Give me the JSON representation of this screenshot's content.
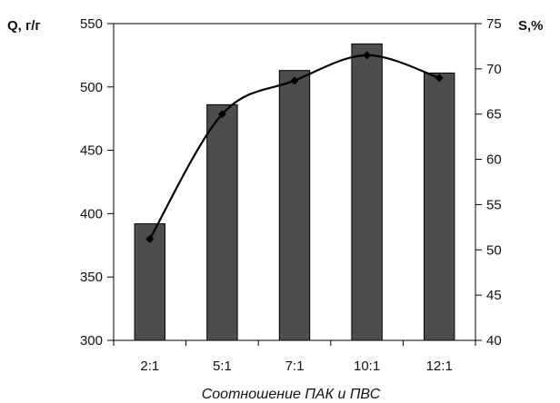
{
  "chart_data": {
    "type": "bar",
    "categories": [
      "2:1",
      "5:1",
      "7:1",
      "10:1",
      "12:1"
    ],
    "xlabel": "Соотношение ПАК и ПВС",
    "grid": false,
    "left_axis": {
      "label": "Q, г/г",
      "ylim": [
        300,
        550
      ],
      "ticks": [
        300,
        350,
        400,
        450,
        500,
        550
      ]
    },
    "right_axis": {
      "label": "S,%",
      "ylim": [
        40,
        75
      ],
      "ticks": [
        40,
        45,
        50,
        55,
        60,
        65,
        70,
        75
      ]
    },
    "series": [
      {
        "type": "bar",
        "axis": "left",
        "values": [
          392,
          486,
          513,
          534,
          511
        ],
        "color": "#4d4d4d"
      },
      {
        "type": "line",
        "axis": "right",
        "smooth": true,
        "marker": "diamond",
        "values": [
          51.2,
          65.0,
          68.7,
          71.5,
          69.0
        ],
        "color": "#000000"
      }
    ]
  }
}
